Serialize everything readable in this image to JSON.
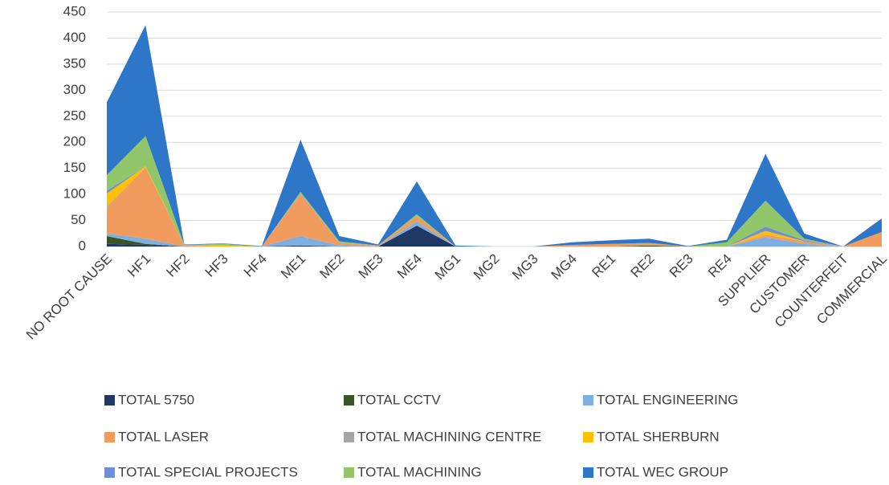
{
  "chart_data": {
    "type": "stacked_area",
    "categories": [
      "NO ROOT CAUSE",
      "HF1",
      "HF2",
      "HF3",
      "HF4",
      "ME1",
      "ME2",
      "ME3",
      "ME4",
      "MG1",
      "MG2",
      "MG3",
      "MG4",
      "RE1",
      "RE2",
      "RE3",
      "RE4",
      "SUPPLIER",
      "CUSTOMER",
      "COUNTERFEIT",
      "COMMERCIAL"
    ],
    "series": [
      {
        "name": "TOTAL 5750",
        "color": "#203864",
        "values": [
          5,
          3,
          0,
          0,
          0,
          2,
          0,
          0,
          40,
          0,
          0,
          0,
          0,
          0,
          0,
          0,
          0,
          0,
          0,
          0,
          0
        ]
      },
      {
        "name": "TOTAL CCTV",
        "color": "#375623",
        "values": [
          15,
          2,
          0,
          0,
          0,
          0,
          0,
          0,
          0,
          0,
          0,
          0,
          0,
          0,
          2,
          0,
          0,
          0,
          0,
          0,
          0
        ]
      },
      {
        "name": "TOTAL ENGINEERING",
        "color": "#7fafe0",
        "values": [
          5,
          10,
          0,
          0,
          0,
          18,
          2,
          0,
          8,
          0,
          0,
          0,
          0,
          0,
          0,
          0,
          0,
          18,
          5,
          0,
          0
        ]
      },
      {
        "name": "TOTAL LASER",
        "color": "#f29b5e",
        "values": [
          50,
          137,
          2,
          0,
          0,
          80,
          5,
          2,
          10,
          0,
          0,
          0,
          3,
          5,
          5,
          0,
          0,
          5,
          5,
          0,
          28
        ]
      },
      {
        "name": "TOTAL MACHINING CENTRE",
        "color": "#a5a5a5",
        "values": [
          2,
          0,
          0,
          0,
          0,
          2,
          0,
          0,
          0,
          0,
          0,
          0,
          0,
          0,
          0,
          0,
          0,
          0,
          0,
          0,
          0
        ]
      },
      {
        "name": "TOTAL SHERBURN",
        "color": "#ffc000",
        "values": [
          25,
          2,
          0,
          2,
          0,
          0,
          0,
          0,
          0,
          0,
          0,
          0,
          0,
          0,
          0,
          0,
          0,
          7,
          0,
          0,
          0
        ]
      },
      {
        "name": "TOTAL SPECIAL PROJECTS",
        "color": "#6d8fd6",
        "values": [
          5,
          0,
          0,
          0,
          0,
          0,
          0,
          0,
          0,
          0,
          0,
          0,
          0,
          0,
          0,
          0,
          0,
          8,
          2,
          0,
          0
        ]
      },
      {
        "name": "TOTAL MACHINING",
        "color": "#92c66b",
        "values": [
          30,
          58,
          1,
          3,
          0,
          3,
          3,
          0,
          4,
          0,
          0,
          0,
          0,
          0,
          0,
          0,
          8,
          50,
          3,
          0,
          0
        ]
      },
      {
        "name": "TOTAL WEC GROUP",
        "color": "#2e77c8",
        "values": [
          140,
          213,
          1,
          1,
          1,
          100,
          10,
          2,
          63,
          2,
          0,
          0,
          5,
          7,
          8,
          1,
          5,
          90,
          10,
          0,
          26
        ]
      }
    ],
    "ylim": [
      0,
      450
    ],
    "yticks": [
      0,
      50,
      100,
      150,
      200,
      250,
      300,
      350,
      400,
      450
    ],
    "grid": true,
    "legend": "bottom"
  }
}
